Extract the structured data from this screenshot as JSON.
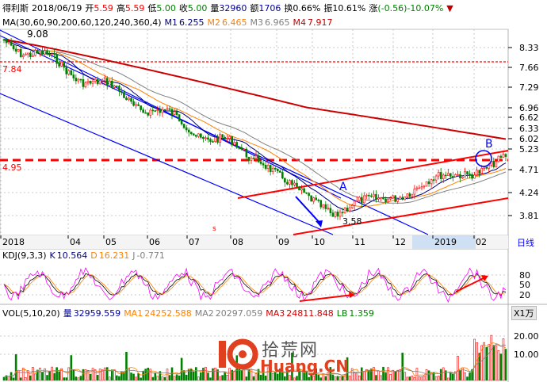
{
  "header": {
    "stock": "得利斯",
    "date": "2018/06/19",
    "open_label": "开",
    "open": "5.59",
    "high_label": "高",
    "high": "5.59",
    "low_label": "低",
    "low": "5.00",
    "close_label": "收",
    "close": "5.00",
    "vol_label": "量",
    "vol": "32960",
    "amount_label": "额",
    "amount": "1706",
    "turnover_label": "换",
    "turnover": "0.66%",
    "amplitude_label": "振",
    "amplitude": "10.61%",
    "change_label": "涨",
    "change": "(-0.56)-10.07%"
  },
  "ma": {
    "title": "MA(30,60,90,200,60,120,240,360,4)",
    "m1_label": "M1",
    "m1": "6.255",
    "m2_label": "M2",
    "m2": "6.465",
    "m3_label": "M3",
    "m3": "6.965",
    "m4_label": "M4",
    "m4": "7.917"
  },
  "kdj": {
    "title": "KDJ(9,3,3)",
    "k_label": "K",
    "k": "10.564",
    "d_label": "D",
    "d": "16.231",
    "j_label": "J",
    "j": "-0.771"
  },
  "vol": {
    "title": "VOL(5,10,20)",
    "v_label": "量",
    "v": "32959.559",
    "ma1_label": "MA1",
    "ma1": "24252.588",
    "ma2_label": "MA2",
    "ma2": "20297.059",
    "ma3_label": "MA3",
    "ma3": "24811.848",
    "lb_label": "LB",
    "lb": "1.359",
    "unit_button": "X1万"
  },
  "price_axis": [
    "8.33",
    "7.66",
    "7.29",
    "6.96",
    "6.62",
    "6.33",
    "6.02",
    "5.23",
    "4.71",
    "4.24",
    "3.81"
  ],
  "kdj_axis": [
    "80",
    "50",
    "20"
  ],
  "vol_axis": [
    "20.00",
    "10.00"
  ],
  "time_axis": [
    "2018",
    "04",
    "05",
    "06",
    "07",
    "08",
    "09",
    "10",
    "11",
    "12",
    "2019",
    "02"
  ],
  "period_button": "日线",
  "annotations": {
    "high_price": "9.08",
    "low_price": "3.58",
    "level_784": "7.84",
    "level_495": "4.95",
    "point_a": "A",
    "point_b": "B",
    "small_s": "s"
  },
  "watermark": {
    "logo_number": "10",
    "cn_text": "拾荒网",
    "domain_text": "Huang.CN"
  },
  "colors": {
    "up": "#ff0000",
    "down": "#008000",
    "ma1": "#000080",
    "ma2": "#ff8000",
    "ma3": "#808080",
    "ma4": "#cc0000",
    "channel": "#0000ff"
  }
}
